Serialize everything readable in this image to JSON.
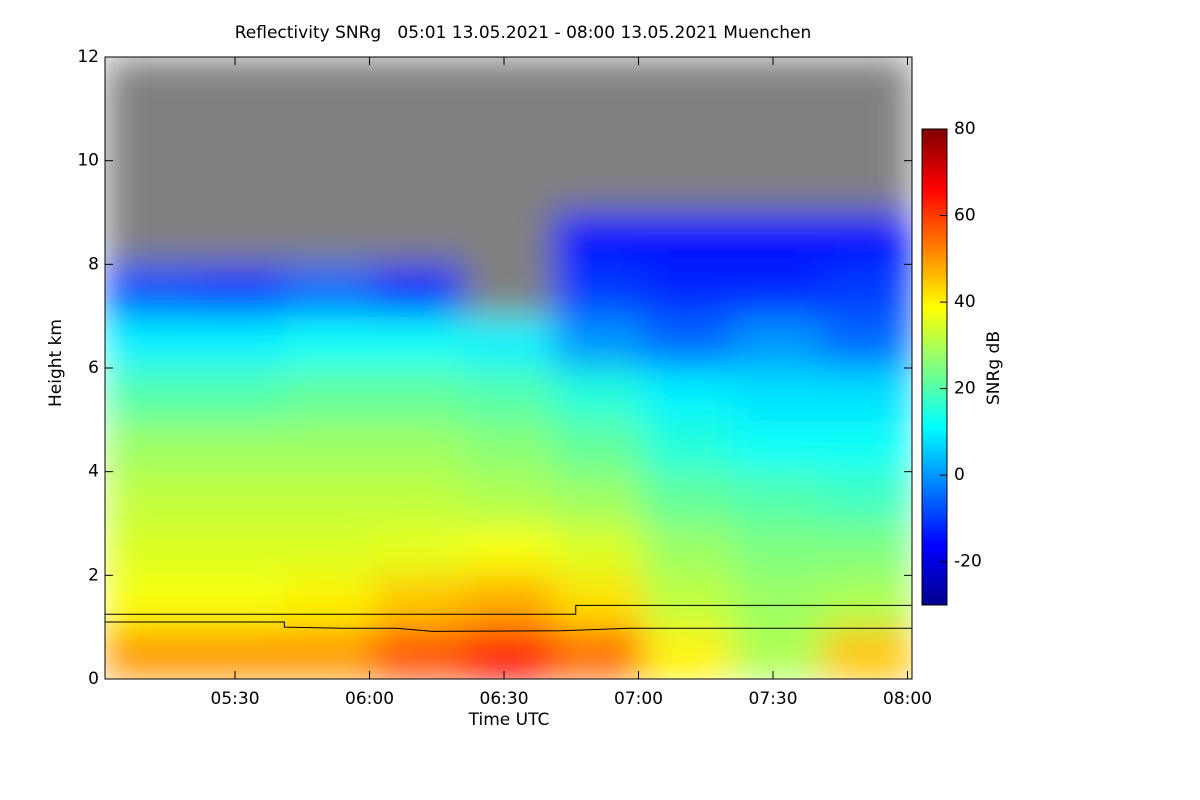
{
  "chart_data": {
    "type": "heatmap",
    "title": "Reflectivity SNRg   05:01 13.05.2021 - 08:00 13.05.2021 Muenchen",
    "x_label": "Time UTC",
    "y_label": "Height km",
    "colorbar_label": "SNRg dB",
    "xlim": [
      301,
      481
    ],
    "ylim": [
      0,
      12
    ],
    "xticks": [
      {
        "value": 330,
        "label": "05:30"
      },
      {
        "value": 360,
        "label": "06:00"
      },
      {
        "value": 390,
        "label": "06:30"
      },
      {
        "value": 420,
        "label": "07:00"
      },
      {
        "value": 450,
        "label": "07:30"
      },
      {
        "value": 480,
        "label": "08:00"
      }
    ],
    "yticks": [
      0,
      2,
      4,
      6,
      8,
      10,
      12
    ],
    "zlim": [
      -30,
      80
    ],
    "zticks": [
      -20,
      0,
      20,
      40,
      60,
      80
    ],
    "colormap": [
      "#00008f",
      "#0000ff",
      "#0080ff",
      "#00ffff",
      "#80ff80",
      "#ffff00",
      "#ff8000",
      "#ff0000",
      "#800000"
    ],
    "nan_color": "#808080",
    "x_bins": [
      301,
      321,
      341,
      361,
      381,
      401,
      421,
      441,
      461,
      481
    ],
    "y_bins": [
      0,
      1,
      2,
      3,
      4,
      5,
      6,
      7,
      8,
      9,
      10,
      11,
      12
    ],
    "z": [
      [
        50,
        50,
        50,
        58,
        65,
        55,
        40,
        30,
        45
      ],
      [
        38,
        38,
        40,
        45,
        48,
        42,
        32,
        28,
        30
      ],
      [
        35,
        35,
        35,
        36,
        38,
        35,
        28,
        25,
        25
      ],
      [
        32,
        32,
        32,
        32,
        30,
        28,
        22,
        20,
        18
      ],
      [
        28,
        28,
        28,
        28,
        26,
        22,
        15,
        12,
        12
      ],
      [
        20,
        20,
        22,
        22,
        20,
        15,
        10,
        8,
        8
      ],
      [
        10,
        10,
        12,
        12,
        10,
        0,
        -5,
        0,
        -5
      ],
      [
        -8,
        -10,
        -5,
        -12,
        null,
        -10,
        -12,
        -12,
        -10
      ],
      [
        null,
        null,
        null,
        null,
        null,
        -15,
        -15,
        -15,
        -15
      ],
      [
        null,
        null,
        null,
        null,
        null,
        null,
        null,
        null,
        null
      ],
      [
        null,
        null,
        null,
        null,
        null,
        null,
        null,
        null,
        null
      ],
      [
        null,
        null,
        null,
        null,
        null,
        null,
        null,
        null,
        null
      ]
    ],
    "series": [
      {
        "color": "#000000",
        "x": [
          301,
          406,
          406,
          481
        ],
        "y": [
          1.25,
          1.25,
          1.42,
          1.42
        ]
      },
      {
        "color": "#000000",
        "x": [
          301,
          341,
          341,
          354,
          366,
          374,
          403,
          418,
          481
        ],
        "y": [
          1.1,
          1.1,
          1.0,
          0.98,
          0.98,
          0.92,
          0.93,
          0.98,
          0.98
        ]
      }
    ]
  }
}
